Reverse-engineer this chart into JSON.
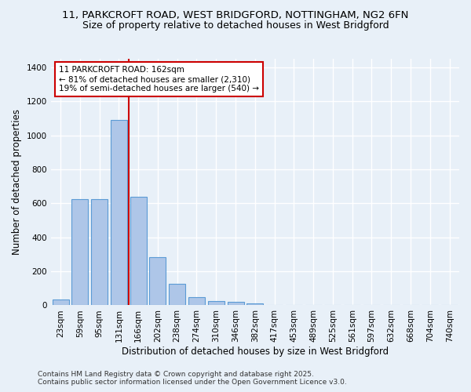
{
  "title_line1": "11, PARKCROFT ROAD, WEST BRIDGFORD, NOTTINGHAM, NG2 6FN",
  "title_line2": "Size of property relative to detached houses in West Bridgford",
  "xlabel": "Distribution of detached houses by size in West Bridgford",
  "ylabel": "Number of detached properties",
  "categories": [
    "23sqm",
    "59sqm",
    "95sqm",
    "131sqm",
    "166sqm",
    "202sqm",
    "238sqm",
    "274sqm",
    "310sqm",
    "346sqm",
    "382sqm",
    "417sqm",
    "453sqm",
    "489sqm",
    "525sqm",
    "561sqm",
    "597sqm",
    "632sqm",
    "668sqm",
    "704sqm",
    "740sqm"
  ],
  "values": [
    35,
    625,
    625,
    1090,
    640,
    285,
    125,
    50,
    25,
    20,
    10,
    0,
    0,
    0,
    0,
    0,
    0,
    0,
    0,
    0,
    0
  ],
  "bar_color": "#aec6e8",
  "bar_edge_color": "#5b9bd5",
  "vline_color": "#cc0000",
  "vline_pos": 3.5,
  "annotation_text": "11 PARKCROFT ROAD: 162sqm\n← 81% of detached houses are smaller (2,310)\n19% of semi-detached houses are larger (540) →",
  "annotation_box_color": "#cc0000",
  "annotation_bg": "#ffffff",
  "background_color": "#e8f0f8",
  "grid_color": "#ffffff",
  "ylim": [
    0,
    1450
  ],
  "yticks": [
    0,
    200,
    400,
    600,
    800,
    1000,
    1200,
    1400
  ],
  "footer_line1": "Contains HM Land Registry data © Crown copyright and database right 2025.",
  "footer_line2": "Contains public sector information licensed under the Open Government Licence v3.0.",
  "title_fontsize": 9.5,
  "subtitle_fontsize": 9,
  "axis_label_fontsize": 8.5,
  "tick_fontsize": 7.5,
  "annotation_fontsize": 7.5,
  "footer_fontsize": 6.5
}
